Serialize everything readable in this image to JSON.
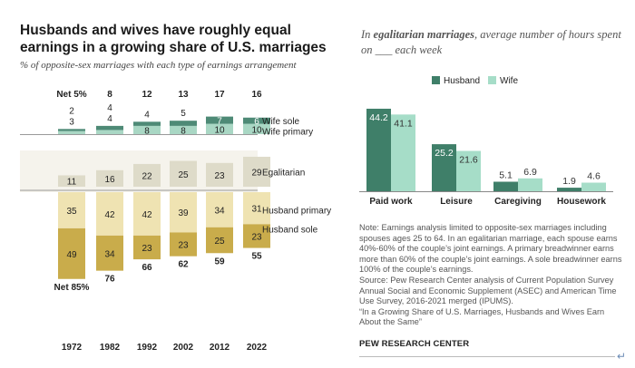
{
  "left": {
    "title": "Husbands and wives have roughly equal earnings in a growing share of U.S. marriages",
    "subtitle": "% of opposite-sex marriages with each type of earnings arrangement"
  },
  "right": {
    "title_prefix": "In ",
    "title_emphasis": "egalitarian marriages",
    "title_suffix": ", average number of hours spent on ___ each week"
  },
  "notes": [
    "Note: Earnings analysis limited to opposite-sex marriages including spouses ages 25 to 64. In an egalitarian marriage, each spouse earns 40%-60% of the couple’s joint earnings. A primary breadwinner earns more than 60% of the couple’s joint earnings. A sole breadwinner earns 100% of the couple’s earnings.",
    "Source: Pew Research Center analysis of Current Population Survey Annual Social and Economic Supplement (ASEC) and American Time Use Survey, 2016-2021 merged (IPUMS).",
    "“In a Growing Share of U.S. Marriages, Husbands and Wives Earn About the Same”"
  ],
  "footer": "PEW RESEARCH CENTER",
  "colors": {
    "wife_sole": "#4e8a76",
    "wife_primary": "#a9d7c4",
    "egalitarian": "#dedbc9",
    "husband_primary": "#efe3b2",
    "husband_sole": "#c9ac4b",
    "husband_bar": "#3f7f69",
    "wife_bar": "#a6ddc8"
  },
  "chart_data": [
    {
      "type": "bar",
      "stacked": true,
      "categories": [
        "1972",
        "1982",
        "1992",
        "2002",
        "2012",
        "2022"
      ],
      "series": [
        {
          "name": "Wife sole",
          "values": [
            2,
            4,
            4,
            5,
            7,
            6
          ]
        },
        {
          "name": "Wife primary",
          "values": [
            3,
            4,
            8,
            8,
            10,
            10
          ]
        },
        {
          "name": "Egalitarian",
          "values": [
            11,
            16,
            22,
            25,
            23,
            29
          ]
        },
        {
          "name": "Husband primary",
          "values": [
            35,
            42,
            42,
            39,
            34,
            31
          ]
        },
        {
          "name": "Husband sole",
          "values": [
            49,
            34,
            23,
            23,
            25,
            23
          ]
        }
      ],
      "net_wife": [
        5,
        8,
        12,
        13,
        17,
        16
      ],
      "net_wife_label_prefix": "Net",
      "net_husband": [
        85,
        76,
        66,
        62,
        59,
        55
      ],
      "net_husband_label_prefix": "Net",
      "value_suffix": "%"
    },
    {
      "type": "bar",
      "categories": [
        "Paid work",
        "Leisure",
        "Caregiving",
        "Housework"
      ],
      "series": [
        {
          "name": "Husband",
          "values": [
            44.2,
            25.2,
            5.1,
            1.9
          ]
        },
        {
          "name": "Wife",
          "values": [
            41.1,
            21.6,
            6.9,
            4.6
          ]
        }
      ],
      "legend_position": "top-right"
    }
  ]
}
